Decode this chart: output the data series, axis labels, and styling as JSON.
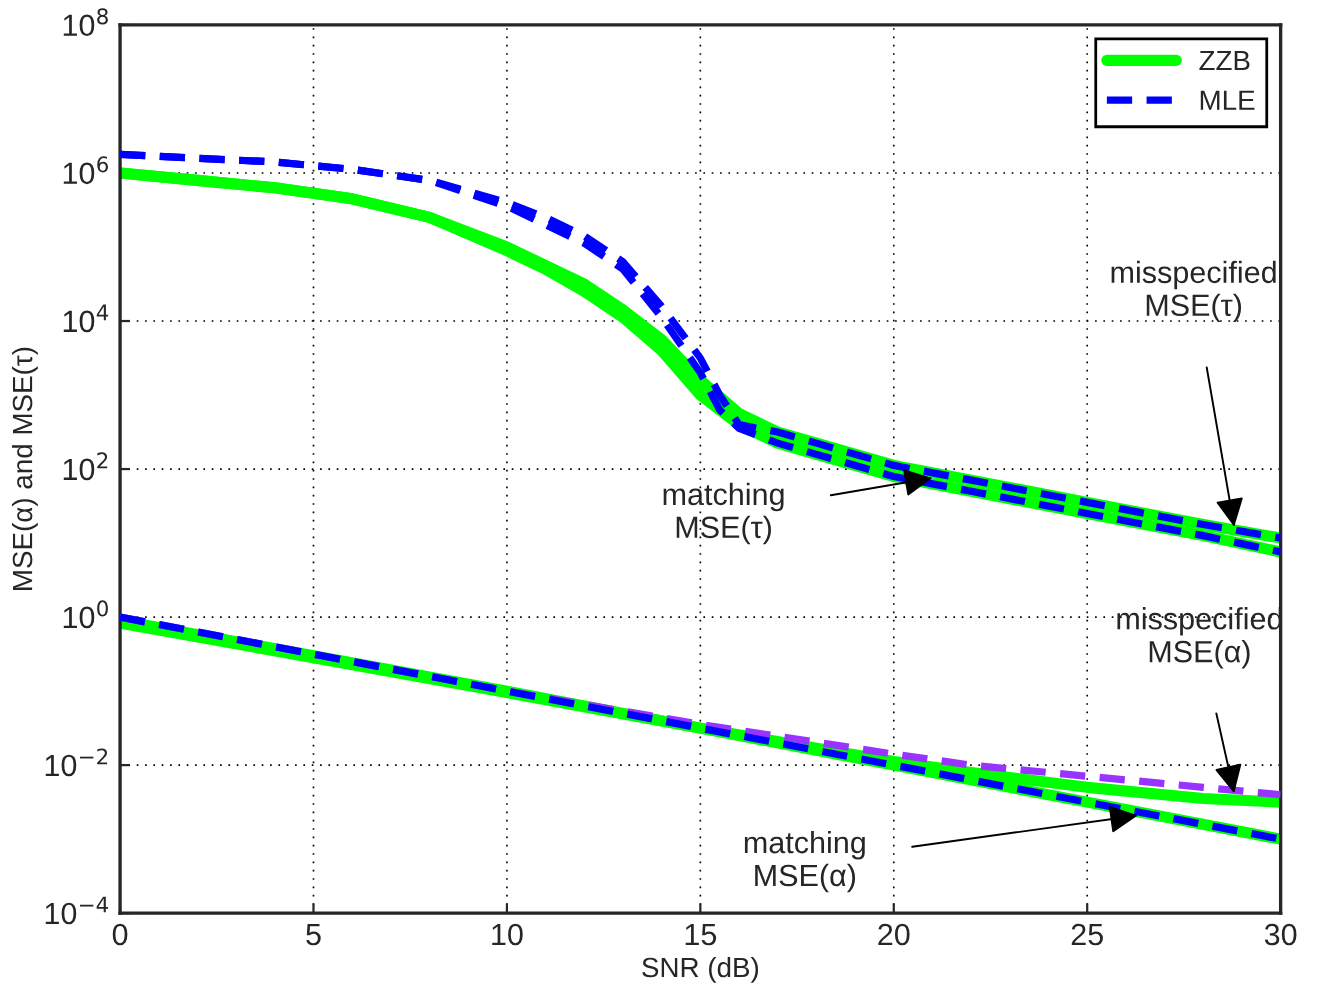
{
  "chart_data": {
    "type": "line",
    "xlabel": "SNR (dB)",
    "ylabel": "MSE(α) and MSE(τ)",
    "xlim": [
      0,
      30
    ],
    "xticks": [
      0,
      5,
      10,
      15,
      20,
      25,
      30
    ],
    "ylim": [
      0.0001,
      100000000
    ],
    "log": "y",
    "yticks": [
      {
        "value": 0.0001,
        "label": "10$^{−4}$"
      },
      {
        "value": 0.01,
        "label": "10$^{−2}$"
      },
      {
        "value": 1,
        "label": "10$^{0}$"
      },
      {
        "value": 100,
        "label": "10$^{2}$"
      },
      {
        "value": 10000,
        "label": "10$^{4}$"
      },
      {
        "value": 1000000,
        "label": "10$^{6}$"
      },
      {
        "value": 100000000,
        "label": "10$^{8}$"
      }
    ],
    "grid": true,
    "legend": "top right",
    "series": [
      {
        "name": "ZZB",
        "color": "#00ff00",
        "line_style": "solid",
        "x": [
          0,
          2,
          4,
          6,
          8,
          10,
          11,
          12,
          13,
          14,
          15,
          16,
          17,
          18,
          20,
          22,
          25,
          28,
          30
        ],
        "values": [
          1000000.0,
          794000.0,
          631000.0,
          447000.0,
          251000.0,
          100000.0,
          56200.0,
          31600.0,
          14100.0,
          5620,
          1580,
          562,
          316,
          224,
          112,
          70.8,
          35.5,
          17.8,
          11.7
        ]
      },
      {
        "color": "#00ff00",
        "line_style": "solid",
        "x": [
          0,
          2,
          4,
          6,
          8,
          10,
          11,
          12,
          13,
          14,
          15,
          16,
          17,
          18,
          20,
          22,
          25,
          28,
          30
        ],
        "values": [
          1000000.0,
          794000.0,
          631000.0,
          447000.0,
          251000.0,
          89100.0,
          50100.0,
          25100.0,
          11200.0,
          3980,
          1000,
          398,
          224,
          158,
          79.4,
          50.1,
          25.1,
          12.6,
          7.59
        ]
      },
      {
        "color": "#00ff00",
        "line_style": "solid",
        "x": [
          0,
          5,
          10,
          15,
          20,
          22,
          25,
          28,
          30
        ],
        "values": [
          0.832,
          0.282,
          0.0955,
          0.0316,
          0.0112,
          0.00794,
          0.00501,
          0.00355,
          0.00316
        ]
      },
      {
        "color": "#00ff00",
        "line_style": "solid",
        "x": [
          0,
          5,
          10,
          15,
          20,
          25,
          30
        ],
        "values": [
          0.9,
          0.3,
          0.1,
          0.0316,
          0.01,
          0.00316,
          0.001
        ]
      },
      {
        "name": "MLE",
        "color": "#0000ff",
        "line_style": "dashed",
        "x": [
          0,
          2,
          4,
          6,
          8,
          10,
          11,
          12,
          13,
          14,
          15,
          15.5,
          16,
          17,
          18,
          20,
          22,
          25,
          28,
          30
        ],
        "values": [
          1780000.0,
          1580000.0,
          1410000.0,
          1120000.0,
          794000.0,
          398000.0,
          251000.0,
          141000.0,
          63100.0,
          15800.0,
          3160,
          1000,
          398,
          316,
          224,
          112,
          70.8,
          35.5,
          17.8,
          11.7
        ]
      },
      {
        "color": "#0000ff",
        "line_style": "dashed",
        "x": [
          0,
          2,
          4,
          6,
          8,
          10,
          11,
          12,
          13,
          14,
          15,
          15.5,
          16,
          17,
          18,
          20,
          22,
          25,
          28,
          30
        ],
        "values": [
          1780000.0,
          1580000.0,
          1410000.0,
          1120000.0,
          794000.0,
          355000.0,
          200000.0,
          112000.0,
          50100.0,
          11200.0,
          2000,
          631,
          355,
          224,
          158,
          79.4,
          50.1,
          25.1,
          12.6,
          7.59
        ]
      },
      {
        "color": "#9933ff",
        "line_style": "dashed",
        "x": [
          0,
          5,
          10,
          15,
          20,
          22,
          25,
          28,
          30
        ],
        "values": [
          1,
          0.316,
          0.1,
          0.0355,
          0.0141,
          0.01,
          0.00708,
          0.00501,
          0.00398
        ]
      },
      {
        "color": "#0000ff",
        "line_style": "dashed",
        "x": [
          0,
          5,
          10,
          15,
          20,
          25,
          30
        ],
        "values": [
          1,
          0.316,
          0.1,
          0.0316,
          0.01,
          0.00316,
          0.001
        ]
      }
    ],
    "annotations": [
      "misspecified\nMSE(τ)",
      "matching\nMSE(τ)",
      "misspecified\nMSE(α)",
      "matching\nMSE(α)"
    ]
  }
}
